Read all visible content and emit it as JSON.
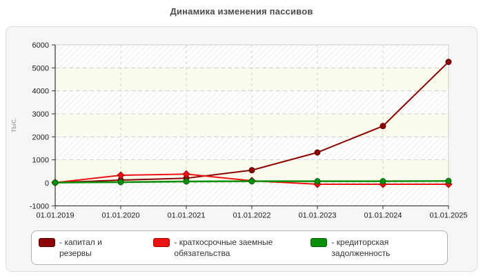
{
  "title": "Динамика изменения пассивов",
  "legend": {
    "separator": "- "
  },
  "chart_data": {
    "type": "line",
    "title": "Динамика изменения пассивов",
    "x": [
      "01.01.2019",
      "01.01.2020",
      "01.01.2021",
      "01.01.2022",
      "01.01.2023",
      "01.01.2024",
      "01.01.2025"
    ],
    "series": [
      {
        "name": "капитал и резервы",
        "color": "#8b0000",
        "dark": "#5a0000",
        "marker": "circle",
        "line_width": 2,
        "values": [
          10,
          120,
          200,
          550,
          1320,
          2470,
          5260
        ]
      },
      {
        "name": "краткосрочные заемные обязательства",
        "color": "#ee1111",
        "dark": "#a50000",
        "marker": "diamond",
        "line_width": 2,
        "values": [
          10,
          330,
          380,
          90,
          -60,
          -60,
          -60
        ]
      },
      {
        "name": "кредиторская задолженность",
        "color": "#0a8f0a",
        "dark": "#055d05",
        "marker": "circle",
        "line_width": 2.5,
        "values": [
          10,
          30,
          60,
          70,
          70,
          70,
          80
        ]
      }
    ],
    "xlabel": "",
    "ylabel": "тыс.",
    "ylim": [
      -1000,
      6000
    ],
    "ytick_step": 1000,
    "yticks": [
      "6000",
      "5000",
      "4000",
      "3000",
      "2000",
      "1000",
      "0",
      "-1000"
    ],
    "grid": "dashed",
    "background_bands": "alternating hatched and cream horizontal bands",
    "legend_position": "bottom"
  }
}
